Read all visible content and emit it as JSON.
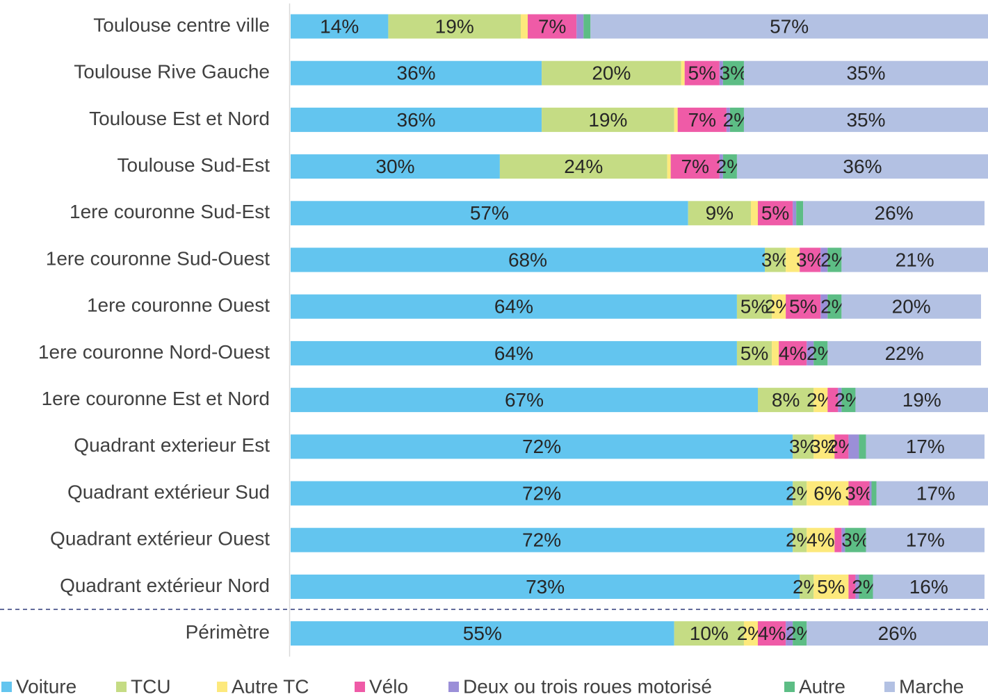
{
  "chart_data": {
    "type": "stacked-bar-horizontal",
    "categories": [
      "Toulouse centre ville",
      "Toulouse Rive Gauche",
      "Toulouse Est et Nord",
      "Toulouse Sud-Est",
      "1ere couronne Sud-Est",
      "1ere couronne Sud-Ouest",
      "1ere couronne Ouest",
      "1ere couronne Nord-Ouest",
      "1ere couronne Est et Nord",
      "Quadrant exterieur Est",
      "Quadrant extérieur Sud",
      "Quadrant extérieur Ouest",
      "Quadrant extérieur Nord",
      "Périmètre"
    ],
    "xlim": [
      0,
      100
    ],
    "legend": "bottom",
    "series": [
      {
        "name": "Voiture",
        "color": "#63c5ef",
        "values": [
          14,
          36,
          36,
          30,
          57,
          68,
          64,
          64,
          67,
          72,
          72,
          72,
          73,
          55
        ],
        "value_labels": [
          "14%",
          "36%",
          "36%",
          "30%",
          "57%",
          "68%",
          "64%",
          "64%",
          "67%",
          "72%",
          "72%",
          "72%",
          "73%",
          "55%"
        ]
      },
      {
        "name": "TCU",
        "color": "#c5dc84",
        "values": [
          19,
          20,
          19,
          24,
          9,
          3,
          5,
          5,
          8,
          3,
          2,
          2,
          2,
          10
        ],
        "value_labels": [
          "19%",
          "20%",
          "19%",
          "24%",
          "9%",
          "3%",
          "5%",
          "5%",
          "8%",
          "3%",
          "2%",
          "2%",
          "2%",
          "10%"
        ]
      },
      {
        "name": "Autre TC",
        "color": "#fde97c",
        "values": [
          1,
          0.5,
          0.5,
          0.5,
          1,
          2,
          2,
          1,
          2,
          3,
          6,
          4,
          5,
          2
        ],
        "value_labels": [
          null,
          null,
          null,
          null,
          null,
          null,
          "2%",
          null,
          "2%",
          "3%",
          "6%",
          "4%",
          "5%",
          "2%"
        ]
      },
      {
        "name": "Vélo",
        "color": "#ef5ba7",
        "values": [
          7,
          5,
          7,
          7,
          5,
          3,
          5,
          4,
          1.5,
          2,
          3,
          1,
          1,
          4
        ],
        "value_labels": [
          "7%",
          "5%",
          "7%",
          "7%",
          "5%",
          "3%",
          "5%",
          "4%",
          null,
          "2%",
          "3%",
          null,
          null,
          "4%"
        ]
      },
      {
        "name": "Deux ou trois roues motorisé",
        "color": "#9b8fd8",
        "values": [
          1,
          0.5,
          0.5,
          0.5,
          0.5,
          1,
          1,
          1,
          0.5,
          1.5,
          0.3,
          0.5,
          0.5,
          1
        ]
      },
      {
        "name": "Autre",
        "color": "#5dbd85",
        "values": [
          1,
          3,
          2,
          2,
          1,
          2,
          2,
          2,
          2,
          1,
          0.7,
          3,
          2,
          2
        ],
        "value_labels": [
          null,
          "3%",
          "2%",
          "2%",
          null,
          "2%",
          "2%",
          "2%",
          "2%",
          null,
          null,
          "3%",
          "2%",
          "2%"
        ]
      },
      {
        "name": "Marche",
        "color": "#b3c1e3",
        "values": [
          57,
          35,
          35,
          36,
          26,
          21,
          20,
          22,
          19,
          17,
          17,
          17,
          16,
          26
        ],
        "value_labels": [
          "57%",
          "35%",
          "35%",
          "36%",
          "26%",
          "21%",
          "20%",
          "22%",
          "19%",
          "17%",
          "17%",
          "17%",
          "16%",
          "26%"
        ]
      }
    ]
  }
}
